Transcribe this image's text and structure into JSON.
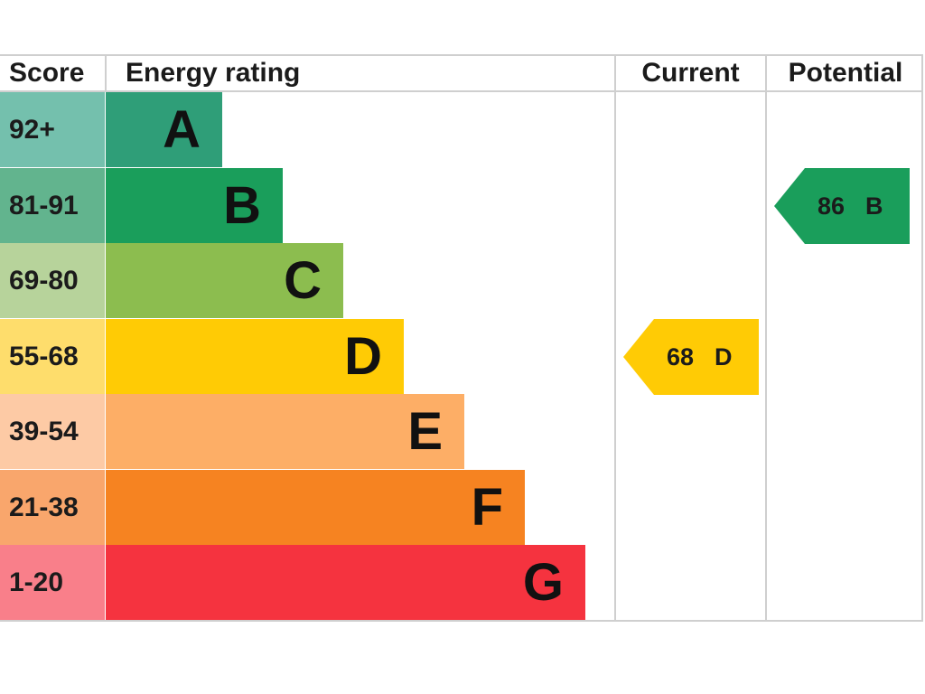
{
  "headers": {
    "score": "Score",
    "rating": "Energy rating",
    "current": "Current",
    "potential": "Potential"
  },
  "chart_data": {
    "type": "bar",
    "categories": [
      "92+",
      "81-91",
      "69-80",
      "55-68",
      "39-54",
      "21-38",
      "1-20"
    ],
    "letters": [
      "A",
      "B",
      "C",
      "D",
      "E",
      "F",
      "G"
    ],
    "colors": [
      "#2f9e78",
      "#1a9e5b",
      "#8cbd4f",
      "#ffcb05",
      "#fdae66",
      "#f68321",
      "#f5333f"
    ],
    "score_bg_colors": [
      "#74c0ad",
      "#62b48e",
      "#b7d39b",
      "#fedd6c",
      "#fdcaa5",
      "#f9a66c",
      "#f97f8a"
    ],
    "current": {
      "score": "68",
      "letter": "D",
      "band": "D",
      "color": "#ffcb05"
    },
    "potential": {
      "score": "86",
      "letter": "B",
      "band": "B",
      "color": "#1a9e5b"
    }
  }
}
